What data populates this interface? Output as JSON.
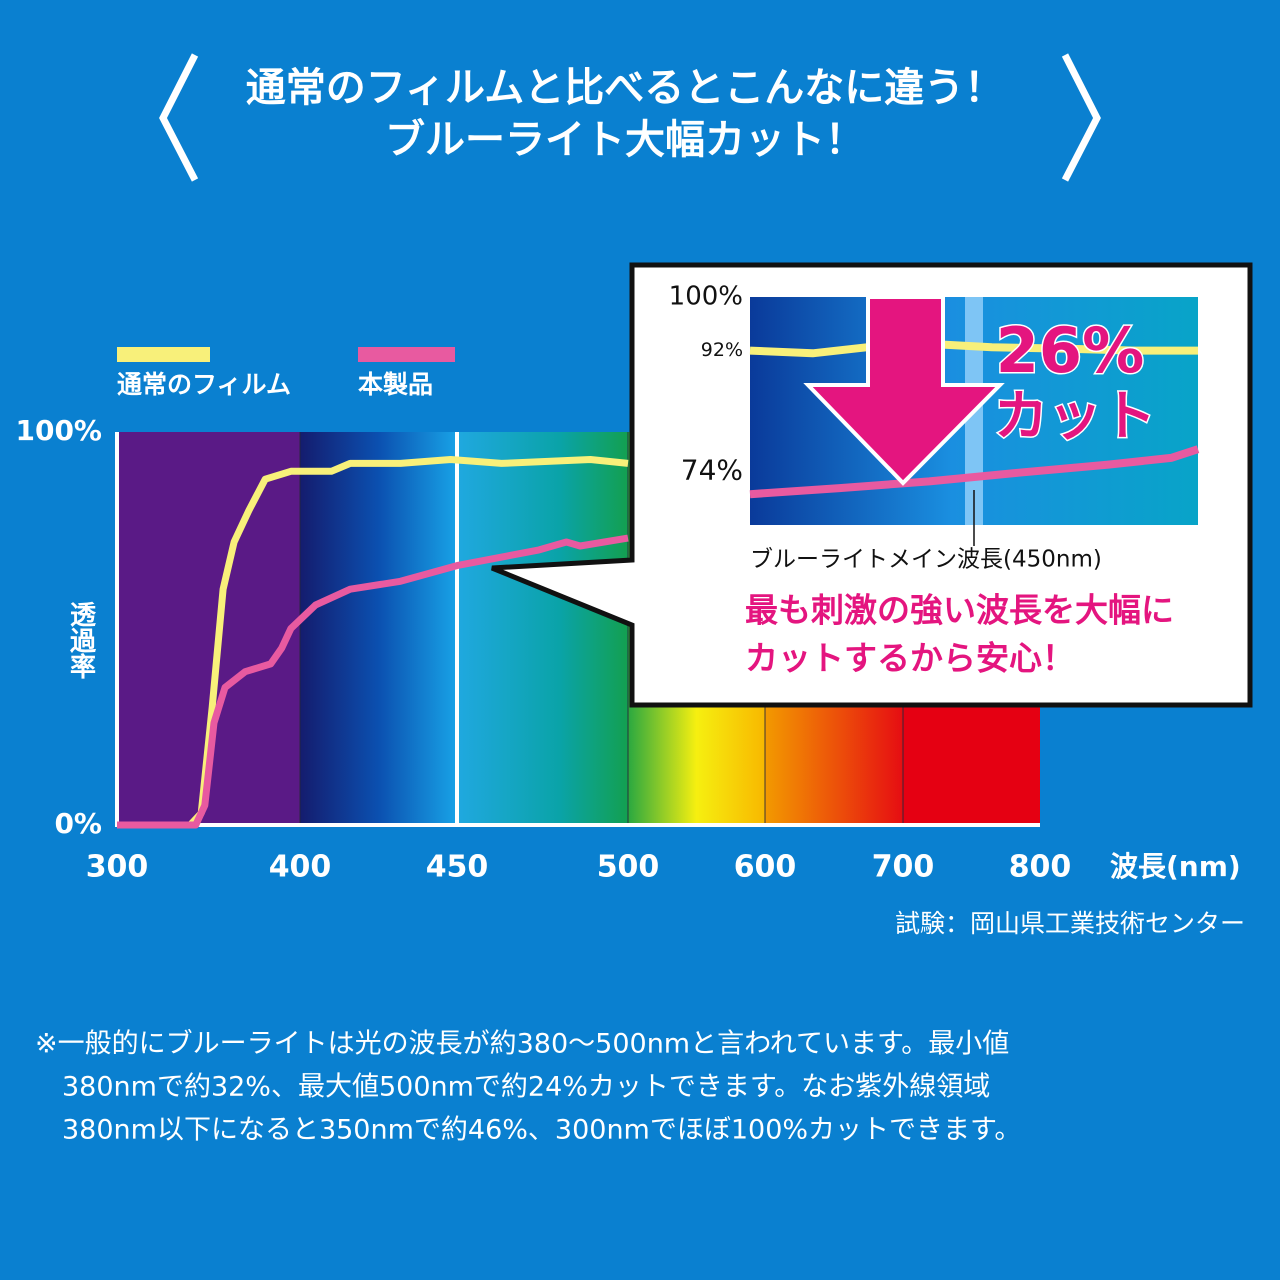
{
  "header": {
    "title_lines": [
      "通常のフィルムと比べるとこんなに違う！",
      "ブルーライト大幅カット！"
    ]
  },
  "chart_data": [
    {
      "type": "line",
      "ylabel": "透過率",
      "xlabel": "波長(nm)",
      "source": "試験：岡山県工業技術センター",
      "xlim": [
        300,
        800
      ],
      "xticks": [
        300,
        400,
        450,
        500,
        600,
        700,
        800
      ],
      "highlight_x": 450,
      "ylim": [
        0,
        100
      ],
      "yticks": [
        {
          "value": 0,
          "label": "0%"
        },
        {
          "value": 100,
          "label": "100%"
        }
      ],
      "series": [
        {
          "name": "通常のフィルム",
          "color": "#f8f07a",
          "x": [
            300,
            340,
            346,
            352,
            358,
            364,
            372,
            381,
            395,
            410,
            416,
            432,
            448,
            463,
            489,
            500
          ],
          "values": [
            0,
            0,
            3,
            30,
            60,
            72,
            80,
            88,
            90,
            90,
            92,
            92,
            93,
            92,
            93,
            92
          ]
        },
        {
          "name": "本製品",
          "color": "#e85aa0",
          "x": [
            300,
            343,
            348,
            353,
            359,
            370,
            384,
            390,
            395,
            405,
            416,
            432,
            450,
            474,
            482,
            486,
            500
          ],
          "values": [
            0,
            0,
            5,
            26,
            35,
            39,
            41,
            45,
            50,
            56,
            60,
            62,
            66,
            70,
            72,
            71,
            73
          ]
        }
      ]
    },
    {
      "type": "line",
      "xlim": [
        425,
        475
      ],
      "ylim": [
        66,
        100
      ],
      "highlight_x": 450,
      "yticks": [
        {
          "value": 100,
          "label": "100%"
        },
        {
          "value": 92,
          "label": "92%"
        },
        {
          "value": 74,
          "label": "74%"
        }
      ],
      "big_annotation": [
        "26%",
        "カット"
      ],
      "annotation": "ブルーライトメイン波長(450nm)",
      "message_lines": [
        "最も刺激の強い波長を大幅に",
        "カットするから安心！"
      ],
      "series": [
        {
          "color": "#f8f07a",
          "x": [
            425,
            432,
            438,
            445,
            452,
            460,
            468,
            475
          ],
          "values": [
            92,
            91.6,
            92.5,
            93,
            92.5,
            92.3,
            92,
            92
          ]
        },
        {
          "color": "#e85aa0",
          "x": [
            425,
            435,
            445,
            455,
            465,
            472,
            475
          ],
          "values": [
            70.6,
            71.5,
            72.5,
            73.8,
            75,
            76,
            77.3
          ]
        }
      ]
    }
  ],
  "note": {
    "lines": [
      "※一般的にブルーライトは光の波長が約380～500nmと言われています。最小値",
      "380nmで約32%、最大値500nmで約24%カットできます。なお紫外線領域",
      "380nm以下になると350nmで約46%、300nmでほぼ100%カットできます。"
    ]
  }
}
